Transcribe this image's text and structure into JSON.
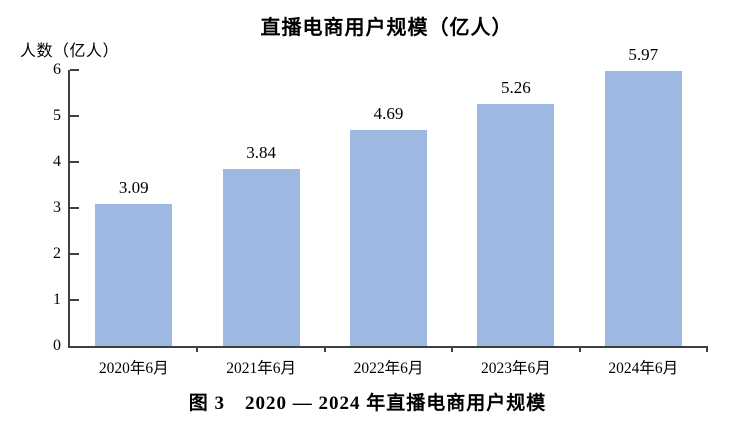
{
  "chart_data": {
    "type": "bar",
    "title": "直播电商用户规模（亿人）",
    "ylabel": "人数（亿人）",
    "xlabel": "",
    "categories": [
      "2020年6月",
      "2021年6月",
      "2022年6月",
      "2023年6月",
      "2024年6月"
    ],
    "values": [
      3.09,
      3.84,
      4.69,
      5.26,
      5.97
    ],
    "value_labels": [
      "3.09",
      "3.84",
      "4.69",
      "5.26",
      "5.97"
    ],
    "ylim": [
      0,
      6
    ],
    "yticks": [
      0,
      1,
      2,
      3,
      4,
      5,
      6
    ],
    "grid": false,
    "legend": "none",
    "bar_color": "#9DB9E2",
    "axis_color": "#3F3F3F",
    "text_color": "#000000"
  },
  "caption": "图 3　2020 — 2024 年直播电商用户规模"
}
